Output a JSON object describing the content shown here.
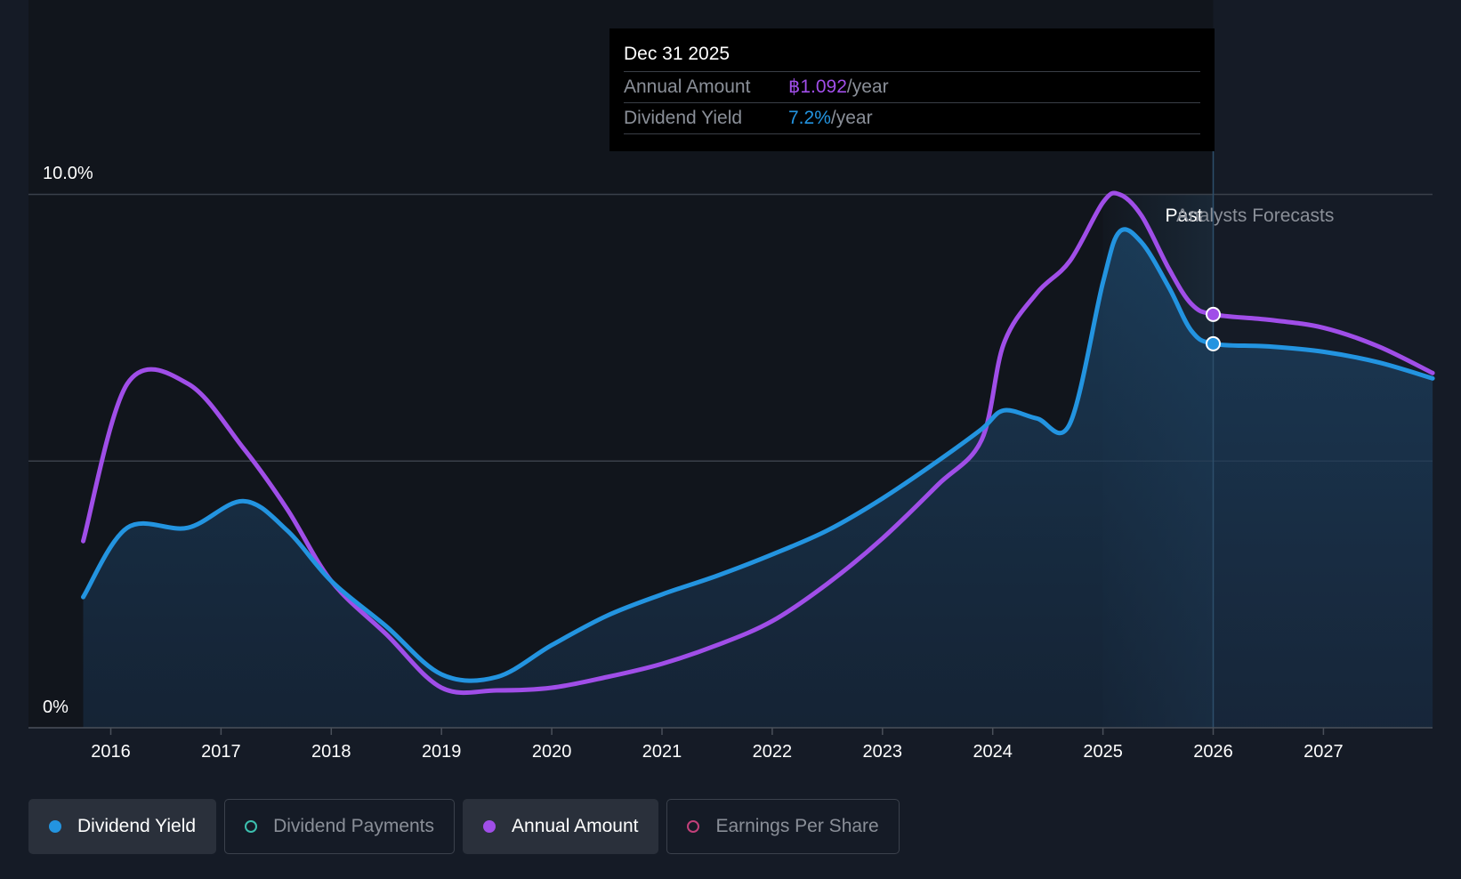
{
  "chart_data": {
    "type": "line",
    "y_tick_labels": [
      "10.0%",
      "0%"
    ],
    "ylim": [
      0,
      10
    ],
    "xlim": [
      2015.75,
      2027.99
    ],
    "x_tick_labels": [
      "2016",
      "2017",
      "2018",
      "2019",
      "2020",
      "2021",
      "2022",
      "2023",
      "2024",
      "2025",
      "2026",
      "2027"
    ],
    "grid": true,
    "region_labels": {
      "past": "Past",
      "forecast": "Analysts Forecasts"
    },
    "past_boundary": 2026.0,
    "series": [
      {
        "name": "Dividend Yield",
        "color": "#2394e0",
        "area": true,
        "points": [
          [
            2015.75,
            2.45
          ],
          [
            2016.15,
            3.75
          ],
          [
            2016.7,
            3.75
          ],
          [
            2017.2,
            4.25
          ],
          [
            2017.6,
            3.7
          ],
          [
            2018.0,
            2.75
          ],
          [
            2018.5,
            1.9
          ],
          [
            2019.0,
            1.0
          ],
          [
            2019.5,
            0.95
          ],
          [
            2020.0,
            1.55
          ],
          [
            2020.5,
            2.1
          ],
          [
            2021.0,
            2.5
          ],
          [
            2021.5,
            2.85
          ],
          [
            2022.0,
            3.25
          ],
          [
            2022.5,
            3.7
          ],
          [
            2023.0,
            4.3
          ],
          [
            2023.5,
            5.0
          ],
          [
            2023.9,
            5.6
          ],
          [
            2024.1,
            5.95
          ],
          [
            2024.4,
            5.8
          ],
          [
            2024.7,
            5.7
          ],
          [
            2025.0,
            8.35
          ],
          [
            2025.15,
            9.3
          ],
          [
            2025.35,
            9.1
          ],
          [
            2025.6,
            8.25
          ],
          [
            2025.8,
            7.45
          ],
          [
            2026.0,
            7.2
          ],
          [
            2026.5,
            7.15
          ],
          [
            2027.0,
            7.05
          ],
          [
            2027.5,
            6.85
          ],
          [
            2027.99,
            6.55
          ]
        ]
      },
      {
        "name": "Annual Amount",
        "color": "#a04ee8",
        "area": false,
        "points": [
          [
            2015.75,
            3.5
          ],
          [
            2016.15,
            6.45
          ],
          [
            2016.7,
            6.45
          ],
          [
            2017.2,
            5.25
          ],
          [
            2017.6,
            4.1
          ],
          [
            2018.0,
            2.75
          ],
          [
            2018.5,
            1.75
          ],
          [
            2019.0,
            0.75
          ],
          [
            2019.5,
            0.7
          ],
          [
            2020.0,
            0.75
          ],
          [
            2020.5,
            0.95
          ],
          [
            2021.0,
            1.2
          ],
          [
            2021.5,
            1.55
          ],
          [
            2022.0,
            2.0
          ],
          [
            2022.5,
            2.7
          ],
          [
            2023.0,
            3.55
          ],
          [
            2023.5,
            4.55
          ],
          [
            2023.9,
            5.4
          ],
          [
            2024.1,
            7.2
          ],
          [
            2024.4,
            8.15
          ],
          [
            2024.7,
            8.75
          ],
          [
            2025.0,
            9.85
          ],
          [
            2025.15,
            10.0
          ],
          [
            2025.35,
            9.6
          ],
          [
            2025.6,
            8.6
          ],
          [
            2025.8,
            7.95
          ],
          [
            2026.0,
            7.75
          ],
          [
            2026.5,
            7.65
          ],
          [
            2027.0,
            7.5
          ],
          [
            2027.5,
            7.15
          ],
          [
            2027.99,
            6.65
          ]
        ]
      }
    ],
    "highlight_x": 2026.0,
    "tooltip": {
      "date": "Dec 31 2025",
      "rows": [
        {
          "label": "Annual Amount",
          "value": "฿1.092",
          "unit": "/year",
          "color": "#a04ee8"
        },
        {
          "label": "Dividend Yield",
          "value": "7.2%",
          "unit": "/year",
          "color": "#2394e0"
        }
      ]
    }
  },
  "legend": [
    {
      "label": "Dividend Yield",
      "active": true,
      "dot_color": "#2394e0",
      "hollow": false
    },
    {
      "label": "Dividend Payments",
      "active": false,
      "dot_color": "#3cbfae",
      "hollow": true
    },
    {
      "label": "Annual Amount",
      "active": true,
      "dot_color": "#a04ee8",
      "hollow": false
    },
    {
      "label": "Earnings Per Share",
      "active": false,
      "dot_color": "#c2407a",
      "hollow": true
    }
  ]
}
